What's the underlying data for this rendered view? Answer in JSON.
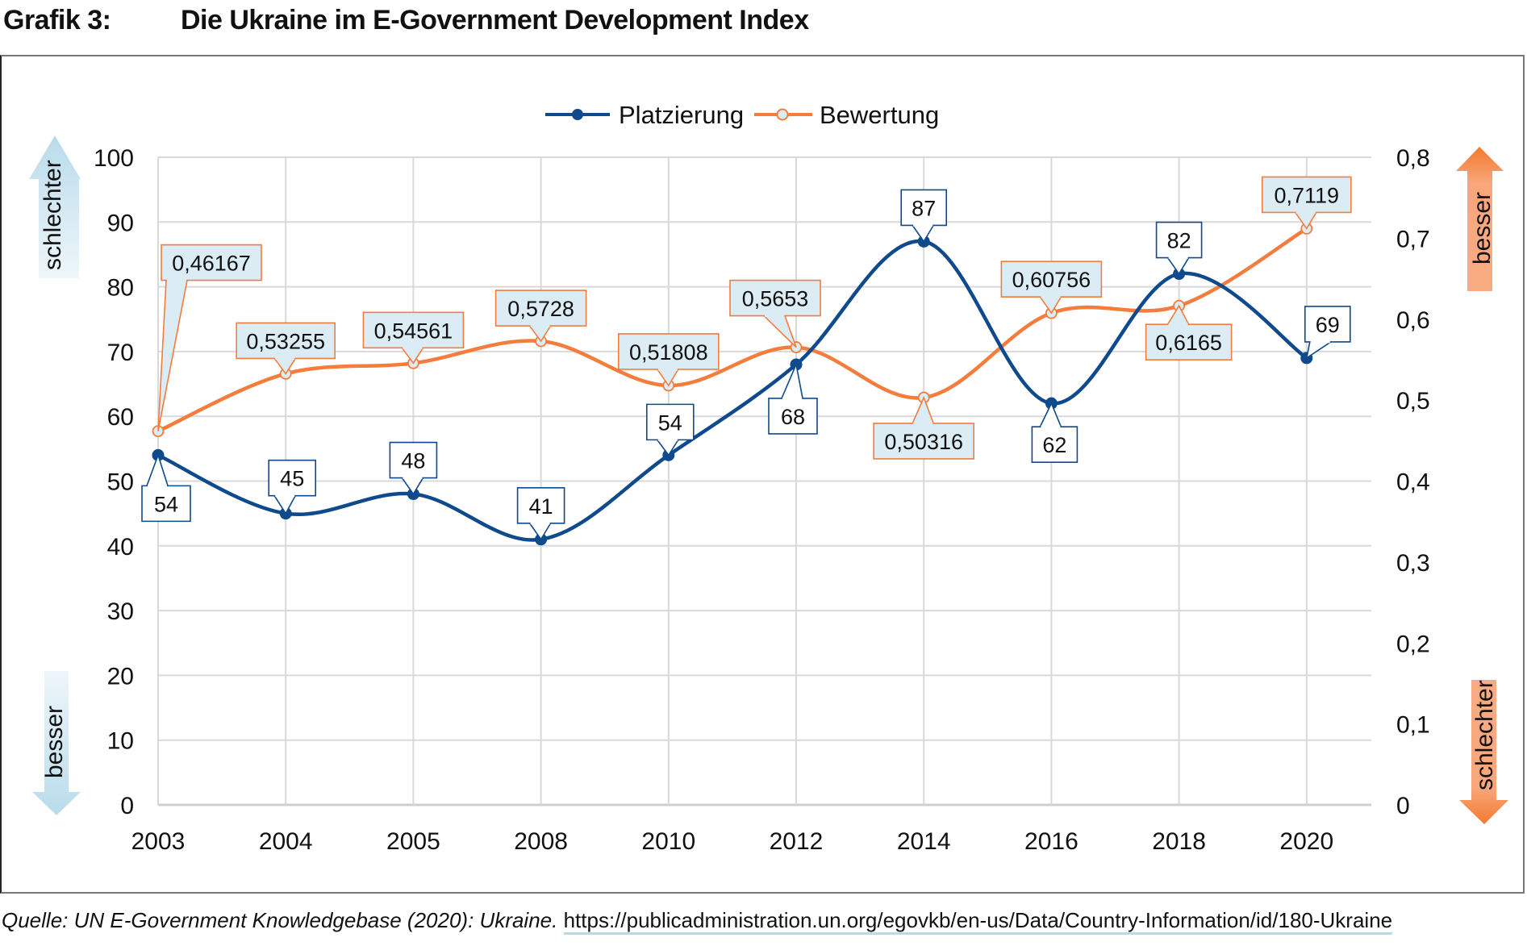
{
  "header": {
    "figure_number": "Grafik 3:",
    "title": "Die Ukraine im E-Government Development Index"
  },
  "source": {
    "prefix": "Quelle: UN E-Government Knowledgebase (2020): Ukraine.",
    "url_text": "https://publicadministration.un.org/egovkb/en-us/Data/Country-Information/id/180-Ukraine"
  },
  "colors": {
    "platzierung": "#0e4a8c",
    "bewertung": "#f47c3c",
    "label_fill": "#dcecf4",
    "grid": "#d9d9d9",
    "arrow_blue": "#cfe6f1",
    "arrow_orange": "#f79a62"
  },
  "side_arrows": {
    "left_top": "schlechter",
    "left_bottom": "besser",
    "right_top": "besser",
    "right_bottom": "schlechter"
  },
  "chart_data": {
    "type": "line",
    "title": "Die Ukraine im E-Government Development Index",
    "categories": [
      "2003",
      "2004",
      "2005",
      "2008",
      "2010",
      "2012",
      "2014",
      "2016",
      "2018",
      "2020"
    ],
    "series": [
      {
        "name": "Platzierung",
        "axis": "left",
        "marker": "filled-circle",
        "smooth": true,
        "values": [
          54,
          45,
          48,
          41,
          54,
          68,
          87,
          62,
          82,
          69
        ],
        "labels": [
          "54",
          "45",
          "48",
          "41",
          "54",
          "68",
          "87",
          "62",
          "82",
          "69"
        ],
        "label_positions": [
          "below",
          "above",
          "above",
          "above",
          "above",
          "below",
          "above",
          "below",
          "above",
          "above-right"
        ]
      },
      {
        "name": "Bewertung",
        "axis": "right",
        "marker": "hollow-circle",
        "smooth": true,
        "values": [
          0.46167,
          0.53255,
          0.54561,
          0.5728,
          0.51808,
          0.5653,
          0.50316,
          0.60756,
          0.6165,
          0.7119
        ],
        "labels": [
          "0,46167",
          "0,53255",
          "0,54561",
          "0,5728",
          "0,51808",
          "0,5653",
          "0,50316",
          "0,60756",
          "0,6165",
          "0,7119"
        ],
        "label_positions": [
          "far-above",
          "above",
          "above",
          "above",
          "above",
          "above",
          "below",
          "above",
          "below",
          "above"
        ]
      }
    ],
    "y_left": {
      "min": 0,
      "max": 100,
      "ticks": [
        "0",
        "10",
        "20",
        "30",
        "40",
        "50",
        "60",
        "70",
        "80",
        "90",
        "100"
      ]
    },
    "y_right": {
      "min": 0,
      "max": 0.8,
      "ticks": [
        "0",
        "0,1",
        "0,2",
        "0,3",
        "0,4",
        "0,5",
        "0,6",
        "0,7",
        "0,8"
      ]
    },
    "xlabel": "",
    "ylabel": "",
    "grid": true,
    "legend": {
      "position": "top-center",
      "entries": [
        "Platzierung",
        "Bewertung"
      ]
    }
  }
}
